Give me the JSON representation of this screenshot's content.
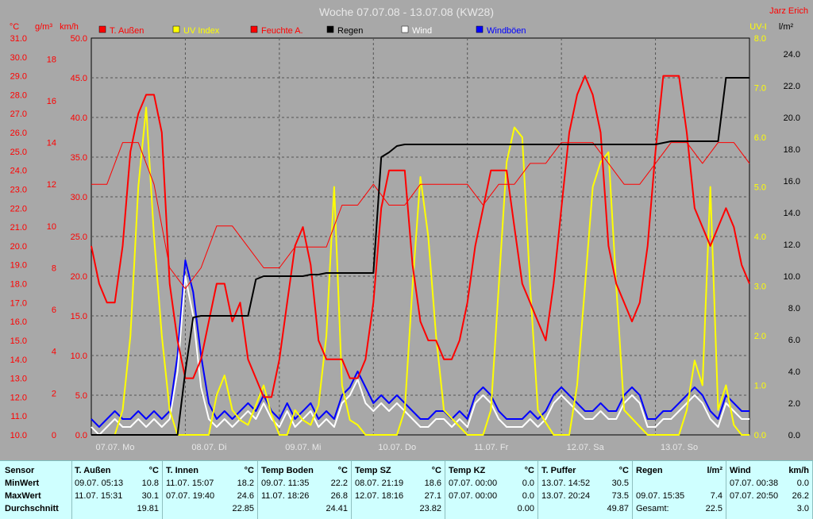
{
  "chart_data": {
    "type": "line",
    "title": "Woche 07.07.08 - 13.07.08 (KW28)",
    "author": "Jarz Erich",
    "axes": {
      "left_c": {
        "unit": "°C",
        "min": 10,
        "max": 31,
        "ticks": [
          "31.0",
          "30.0",
          "29.0",
          "28.0",
          "27.0",
          "26.0",
          "25.0",
          "24.0",
          "23.0",
          "22.0",
          "21.0",
          "20.0",
          "19.0",
          "18.0",
          "17.0",
          "16.0",
          "15.0",
          "14.0",
          "13.0",
          "12.0",
          "11.0",
          "10.0"
        ]
      },
      "left_g": {
        "unit": "g/m³",
        "min": 0,
        "max": 19,
        "ticks": [
          "18",
          "16",
          "14",
          "12",
          "10",
          "8",
          "6",
          "4",
          "2",
          "0"
        ]
      },
      "left_kmh": {
        "unit": "km/h",
        "min": 0,
        "max": 50,
        "ticks": [
          "50.0",
          "45.0",
          "40.0",
          "35.0",
          "30.0",
          "25.0",
          "20.0",
          "15.0",
          "10.0",
          "5.0",
          "0.0"
        ]
      },
      "right_uv": {
        "unit": "UV-I",
        "min": 0,
        "max": 8,
        "ticks": [
          "8.0",
          "7.0",
          "6.0",
          "5.0",
          "4.0",
          "3.0",
          "2.0",
          "1.0",
          "0.0"
        ]
      },
      "right_rain": {
        "unit": "l/m²",
        "min": 0,
        "max": 25,
        "ticks": [
          "24.0",
          "22.0",
          "20.0",
          "18.0",
          "16.0",
          "14.0",
          "12.0",
          "10.0",
          "8.0",
          "6.0",
          "4.0",
          "2.0",
          "0.0"
        ]
      }
    },
    "x_labels": [
      "07.07. Mo",
      "08.07. Di",
      "09.07. Mi",
      "10.07. Do",
      "11.07. Fr",
      "12.07. Sa",
      "13.07. So"
    ],
    "x_range_hours": [
      0,
      168
    ],
    "legend": [
      {
        "name": "T. Außen",
        "color": "#ff0000"
      },
      {
        "name": "UV Index",
        "color": "#ffff00"
      },
      {
        "name": "Feuchte A.",
        "color": "#ff0000"
      },
      {
        "name": "Regen",
        "color": "#000000"
      },
      {
        "name": "Wind",
        "color": "#ffffff"
      },
      {
        "name": "Windböen",
        "color": "#0000ff"
      }
    ],
    "series": [
      {
        "name": "T. Außen",
        "axis": "left_c",
        "color": "#ff0000",
        "width": 2,
        "x": [
          0,
          2,
          4,
          6,
          8,
          10,
          12,
          14,
          16,
          18,
          19,
          20,
          22,
          24,
          26,
          28,
          30,
          32,
          34,
          36,
          38,
          40,
          42,
          44,
          46,
          48,
          50,
          52,
          54,
          56,
          58,
          60,
          62,
          64,
          66,
          68,
          70,
          72,
          74,
          76,
          78,
          80,
          82,
          84,
          86,
          88,
          90,
          92,
          94,
          96,
          98,
          100,
          102,
          104,
          106,
          108,
          110,
          112,
          114,
          116,
          118,
          120,
          122,
          124,
          126,
          128,
          130,
          132,
          134,
          136,
          138,
          140,
          142,
          144,
          146,
          148,
          150,
          152,
          154,
          156,
          158,
          160,
          162,
          164,
          166,
          168
        ],
        "y": [
          20,
          18,
          17,
          17,
          20,
          25,
          27,
          28,
          28,
          26,
          22,
          18,
          15,
          13,
          13,
          14,
          16,
          18,
          18,
          16,
          17,
          14,
          13,
          12,
          12,
          14,
          17,
          20,
          21,
          19,
          15,
          14,
          14,
          14,
          13,
          13,
          14,
          17,
          22,
          24,
          24,
          24,
          19,
          16,
          15,
          15,
          14,
          14,
          15,
          17,
          20,
          22,
          24,
          24,
          24,
          21,
          18,
          17,
          16,
          15,
          18,
          22,
          26,
          28,
          29,
          28,
          26,
          20,
          18,
          17,
          16,
          17,
          20,
          25,
          29,
          29,
          29,
          26,
          22,
          21,
          20,
          21,
          22,
          21,
          19,
          18
        ]
      },
      {
        "name": "Feuchte A.",
        "axis": "left_g",
        "color": "#ff0000",
        "width": 1,
        "x": [
          0,
          4,
          8,
          12,
          16,
          20,
          24,
          28,
          32,
          36,
          40,
          44,
          48,
          52,
          56,
          60,
          64,
          68,
          72,
          76,
          80,
          84,
          88,
          92,
          96,
          100,
          104,
          108,
          112,
          116,
          120,
          124,
          128,
          132,
          136,
          140,
          144,
          148,
          152,
          156,
          160,
          164,
          168
        ],
        "y": [
          12,
          12,
          14,
          14,
          12,
          8,
          7,
          8,
          10,
          10,
          9,
          8,
          8,
          9,
          9,
          9,
          11,
          11,
          12,
          11,
          11,
          12,
          12,
          12,
          12,
          11,
          12,
          12,
          13,
          13,
          14,
          14,
          14,
          13,
          12,
          12,
          13,
          14,
          14,
          13,
          14,
          14,
          13
        ]
      },
      {
        "name": "UV Index",
        "axis": "right_uv",
        "color": "#ffff00",
        "width": 2,
        "x": [
          0,
          6,
          8,
          10,
          12,
          14,
          16,
          18,
          20,
          22,
          24,
          30,
          32,
          34,
          36,
          38,
          40,
          42,
          44,
          46,
          48,
          50,
          52,
          54,
          56,
          58,
          60,
          62,
          64,
          66,
          68,
          70,
          72,
          76,
          78,
          80,
          82,
          84,
          86,
          88,
          90,
          96,
          100,
          102,
          104,
          106,
          108,
          110,
          112,
          114,
          118,
          122,
          124,
          126,
          128,
          130,
          132,
          134,
          136,
          142,
          144,
          146,
          148,
          150,
          152,
          154,
          156,
          158,
          160,
          162,
          164,
          166,
          168
        ],
        "y": [
          0,
          0,
          0.5,
          2,
          5,
          6.6,
          4,
          2,
          0.5,
          0,
          0,
          0,
          0.8,
          1.2,
          0.5,
          0.3,
          0.2,
          0.6,
          1,
          0.4,
          0,
          0,
          0.5,
          0.3,
          0.2,
          0.6,
          2,
          5,
          1,
          0.3,
          0.2,
          0,
          0,
          0,
          0,
          0.5,
          3,
          5.2,
          4,
          2,
          0.5,
          0,
          0,
          0.5,
          3,
          5.5,
          6.2,
          6,
          3,
          0.5,
          0,
          0,
          1,
          3,
          5,
          5.5,
          5.7,
          3,
          0.5,
          0,
          0,
          0,
          0,
          0,
          0.5,
          1.5,
          1,
          5,
          0.5,
          1,
          0.2,
          0,
          0
        ]
      },
      {
        "name": "Regen",
        "axis": "right_rain",
        "color": "#000000",
        "width": 2,
        "x": [
          0,
          8,
          16,
          22,
          24,
          26,
          28,
          32,
          34,
          36,
          38,
          40,
          42,
          44,
          46,
          48,
          50,
          52,
          54,
          56,
          58,
          60,
          62,
          64,
          66,
          68,
          70,
          72,
          74,
          76,
          78,
          80,
          82,
          84,
          86,
          88,
          90,
          96,
          100,
          104,
          108,
          112,
          116,
          120,
          124,
          128,
          132,
          136,
          140,
          144,
          148,
          152,
          156,
          158,
          160,
          162,
          164,
          168
        ],
        "y": [
          0,
          0,
          0,
          0,
          4,
          7.4,
          7.5,
          7.5,
          7.5,
          7.5,
          7.5,
          7.5,
          9.8,
          10,
          10,
          10,
          10,
          10,
          10,
          10.1,
          10.1,
          10.2,
          10.2,
          10.2,
          10.2,
          10.2,
          10.2,
          10.2,
          17.5,
          17.8,
          18.2,
          18.3,
          18.3,
          18.3,
          18.3,
          18.3,
          18.3,
          18.3,
          18.3,
          18.3,
          18.3,
          18.3,
          18.3,
          18.3,
          18.3,
          18.3,
          18.3,
          18.3,
          18.3,
          18.3,
          18.5,
          18.5,
          18.5,
          18.5,
          18.5,
          22.5,
          22.5,
          22.5
        ]
      },
      {
        "name": "Windböen",
        "axis": "left_kmh",
        "color": "#0000ff",
        "width": 2,
        "x": [
          0,
          2,
          4,
          6,
          8,
          10,
          12,
          14,
          16,
          18,
          20,
          22,
          24,
          26,
          28,
          30,
          32,
          34,
          36,
          38,
          40,
          42,
          44,
          46,
          48,
          50,
          52,
          54,
          56,
          58,
          60,
          62,
          64,
          66,
          68,
          70,
          72,
          74,
          76,
          78,
          80,
          82,
          84,
          86,
          88,
          90,
          92,
          94,
          96,
          98,
          100,
          102,
          104,
          106,
          108,
          110,
          112,
          114,
          116,
          118,
          120,
          122,
          124,
          126,
          128,
          130,
          132,
          134,
          136,
          138,
          140,
          142,
          144,
          146,
          148,
          150,
          152,
          154,
          156,
          158,
          160,
          162,
          164,
          166,
          168
        ],
        "y": [
          2,
          1,
          2,
          3,
          2,
          2,
          3,
          2,
          3,
          2,
          3,
          10,
          22,
          18,
          10,
          4,
          2,
          3,
          2,
          3,
          4,
          3,
          5,
          3,
          2,
          4,
          2,
          3,
          4,
          2,
          3,
          2,
          5,
          6,
          8,
          6,
          4,
          5,
          4,
          5,
          4,
          3,
          2,
          2,
          3,
          3,
          2,
          3,
          2,
          5,
          6,
          5,
          3,
          2,
          2,
          2,
          3,
          2,
          3,
          5,
          6,
          5,
          4,
          3,
          3,
          4,
          3,
          3,
          5,
          6,
          5,
          2,
          2,
          3,
          3,
          4,
          5,
          6,
          5,
          3,
          2,
          5,
          4,
          3,
          3
        ]
      },
      {
        "name": "Wind",
        "axis": "left_kmh",
        "color": "#ffffff",
        "width": 2,
        "x": [
          0,
          2,
          4,
          6,
          8,
          10,
          12,
          14,
          16,
          18,
          20,
          22,
          24,
          26,
          28,
          30,
          32,
          34,
          36,
          38,
          40,
          42,
          44,
          46,
          48,
          50,
          52,
          54,
          56,
          58,
          60,
          62,
          64,
          66,
          68,
          70,
          72,
          74,
          76,
          78,
          80,
          82,
          84,
          86,
          88,
          90,
          92,
          94,
          96,
          98,
          100,
          102,
          104,
          106,
          108,
          110,
          112,
          114,
          116,
          118,
          120,
          122,
          124,
          126,
          128,
          130,
          132,
          134,
          136,
          138,
          140,
          142,
          144,
          146,
          148,
          150,
          152,
          154,
          156,
          158,
          160,
          162,
          164,
          166,
          168
        ],
        "y": [
          1,
          0,
          1,
          2,
          1,
          1,
          2,
          1,
          2,
          1,
          2,
          8,
          20,
          15,
          6,
          2,
          1,
          2,
          1,
          2,
          3,
          2,
          4,
          2,
          1,
          3,
          1,
          2,
          3,
          1,
          2,
          1,
          4,
          5,
          7,
          4,
          3,
          4,
          3,
          4,
          3,
          2,
          1,
          1,
          2,
          2,
          1,
          2,
          1,
          4,
          5,
          4,
          2,
          1,
          1,
          1,
          2,
          1,
          2,
          4,
          5,
          4,
          3,
          2,
          2,
          3,
          2,
          2,
          4,
          5,
          4,
          1,
          1,
          2,
          2,
          3,
          4,
          5,
          4,
          2,
          1,
          4,
          3,
          2,
          2
        ]
      }
    ]
  },
  "table": {
    "row_labels": [
      "Sensor",
      "MinWert",
      "MaxWert",
      "Durchschnitt"
    ],
    "columns": [
      {
        "name": "T. Außen",
        "unit": "°C",
        "min_date": "09.07.  05:13",
        "min_val": "10.8",
        "max_date": "11.07.  15:31",
        "max_val": "30.1",
        "avg": "19.81"
      },
      {
        "name": "T. Innen",
        "unit": "°C",
        "min_date": "11.07.  15:07",
        "min_val": "18.2",
        "max_date": "07.07.  19:40",
        "max_val": "24.6",
        "avg": "22.85"
      },
      {
        "name": "Temp Boden",
        "unit": "°C",
        "min_date": "09.07.  11:35",
        "min_val": "22.2",
        "max_date": "11.07.  18:26",
        "max_val": "26.8",
        "avg": "24.41"
      },
      {
        "name": "Temp SZ",
        "unit": "°C",
        "min_date": "08.07.  21:19",
        "min_val": "18.6",
        "max_date": "12.07.  18:16",
        "max_val": "27.1",
        "avg": "23.82"
      },
      {
        "name": "Temp KZ",
        "unit": "°C",
        "min_date": "07.07.  00:00",
        "min_val": "0.0",
        "max_date": "07.07.  00:00",
        "max_val": "0.0",
        "avg": "0.00"
      },
      {
        "name": "T. Puffer",
        "unit": "°C",
        "min_date": "13.07.  14:52",
        "min_val": "30.5",
        "max_date": "13.07.  20:24",
        "max_val": "73.5",
        "avg": "49.87"
      },
      {
        "name": "Regen",
        "unit": "l/m²",
        "min_date": "",
        "min_val": "",
        "max_date": "09.07.  15:35",
        "max_val": "7.4",
        "avg_label": "Gesamt:",
        "avg": "22.5"
      },
      {
        "name": "Wind",
        "unit": "km/h",
        "min_date": "07.07.  00:38",
        "min_val": "0.0",
        "max_date": "07.07.  20:50",
        "max_val": "26.2",
        "avg": "3.0"
      }
    ]
  }
}
